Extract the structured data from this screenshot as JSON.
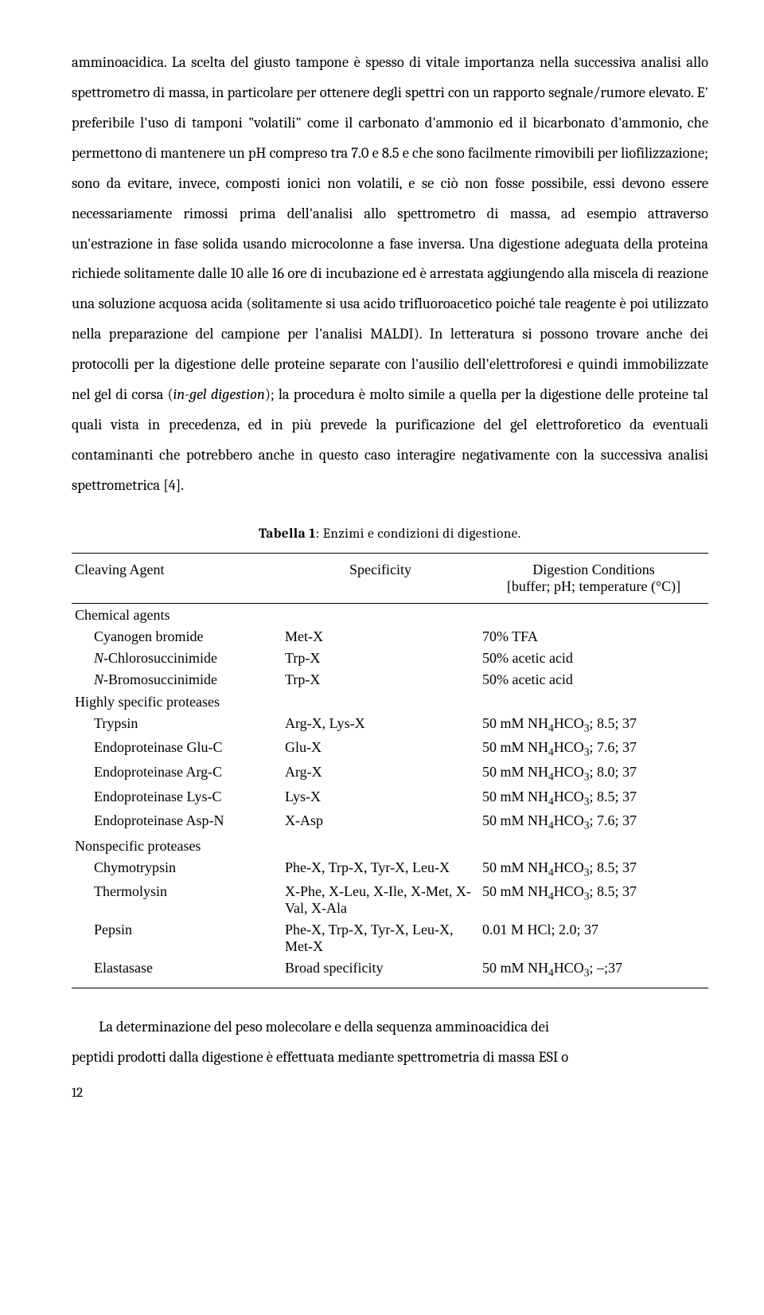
{
  "paragraph1": "amminoacidica. La scelta del giusto tampone è spesso di vitale importanza nella successiva analisi allo spettrometro di massa, in particolare per ottenere degli spettri con un rapporto segnale/rumore elevato. E' preferibile l'uso di tamponi \"volatili\" come il carbonato d'ammonio ed il bicarbonato d'ammonio, che permettono di mantenere un pH compreso tra 7.0 e 8.5 e che sono facilmente rimovibili per liofilizzazione; sono da evitare, invece, composti ionici non volatili, e se ciò non fosse possibile, essi devono essere necessariamente rimossi prima dell'analisi allo spettrometro di massa, ad esempio attraverso un'estrazione in fase solida usando microcolonne a fase inversa. Una digestione adeguata della proteina richiede solitamente dalle 10 alle 16 ore di incubazione ed è arrestata aggiungendo alla miscela di reazione una soluzione acquosa acida (solitamente si usa acido trifluoroacetico poiché tale reagente è poi utilizzato nella preparazione del campione per l'analisi MALDI). In letteratura si possono trovare anche dei protocolli per la digestione delle proteine separate con l'ausilio dell'elettroforesi e quindi immobilizzate nel gel di corsa (",
  "paragraph1_italic": "in-gel digestion",
  "paragraph1_end": "); la procedura è molto simile a quella per la digestione delle proteine tal quali vista in precedenza, ed in più prevede la purificazione del gel elettroforetico da eventuali contaminanti che potrebbero anche in questo caso interagire negativamente con la successiva analisi spettrometrica [4].",
  "caption_bold": "Tabella 1",
  "caption_rest": ": Enzimi e condizioni di digestione.",
  "table": {
    "headers": {
      "c1": "Cleaving Agent",
      "c2": "Specificity",
      "c3_top": "Digestion Conditions",
      "c3_sub": "[buffer; pH; temperature (°C)]"
    },
    "sections": [
      {
        "title": "Chemical agents",
        "rows": [
          {
            "a": "Cyanogen bromide",
            "b": "Met-X",
            "c": "70% TFA"
          },
          {
            "a_html": "<i>N</i>-Chlorosuccinimide",
            "b": "Trp-X",
            "c": "50% acetic acid"
          },
          {
            "a_html": "<i>N</i>-Bromosuccinimide",
            "b": "Trp-X",
            "c": "50% acetic acid"
          }
        ]
      },
      {
        "title": "Highly specific proteases",
        "rows": [
          {
            "a": "Trypsin",
            "b": "Arg-X, Lys-X",
            "c_html": "50 mM NH<sub>4</sub>HCO<sub>3</sub>; 8.5; 37"
          },
          {
            "a": "Endoproteinase Glu-C",
            "b": "Glu-X",
            "c_html": "50 mM NH<sub>4</sub>HCO<sub>3</sub>; 7.6; 37"
          },
          {
            "a": "Endoproteinase Arg-C",
            "b": "Arg-X",
            "c_html": "50 mM NH<sub>4</sub>HCO<sub>3</sub>; 8.0; 37"
          },
          {
            "a": "Endoproteinase Lys-C",
            "b": "Lys-X",
            "c_html": "50 mM NH<sub>4</sub>HCO<sub>3</sub>; 8.5; 37"
          },
          {
            "a": "Endoproteinase Asp-N",
            "b": "X-Asp",
            "c_html": "50 mM NH<sub>4</sub>HCO<sub>3</sub>; 7.6; 37"
          }
        ]
      },
      {
        "title": "Nonspecific proteases",
        "rows": [
          {
            "a": "Chymotrypsin",
            "b": "Phe-X, Trp-X, Tyr-X, Leu-X",
            "c_html": "50 mM NH<sub>4</sub>HCO<sub>3</sub>; 8.5; 37"
          },
          {
            "a": "Thermolysin",
            "b": "X-Phe, X-Leu, X-Ile, X-Met, X-Val, X-Ala",
            "c_html": "50 mM NH<sub>4</sub>HCO<sub>3</sub>; 8.5; 37"
          },
          {
            "a": "Pepsin",
            "b": "Phe-X, Trp-X, Tyr-X, Leu-X, Met-X",
            "c": "0.01 M HCl; 2.0; 37"
          },
          {
            "a": "Elastasase",
            "b": "Broad specificity",
            "c_html": "50 mM NH<sub>4</sub>HCO<sub>3</sub>; –;37"
          }
        ]
      }
    ]
  },
  "closing_line1": "La determinazione del peso molecolare e della sequenza amminoacidica dei",
  "closing_line2": "peptidi prodotti dalla digestione è effettuata mediante spettrometria di massa ESI o",
  "page_number": "12"
}
